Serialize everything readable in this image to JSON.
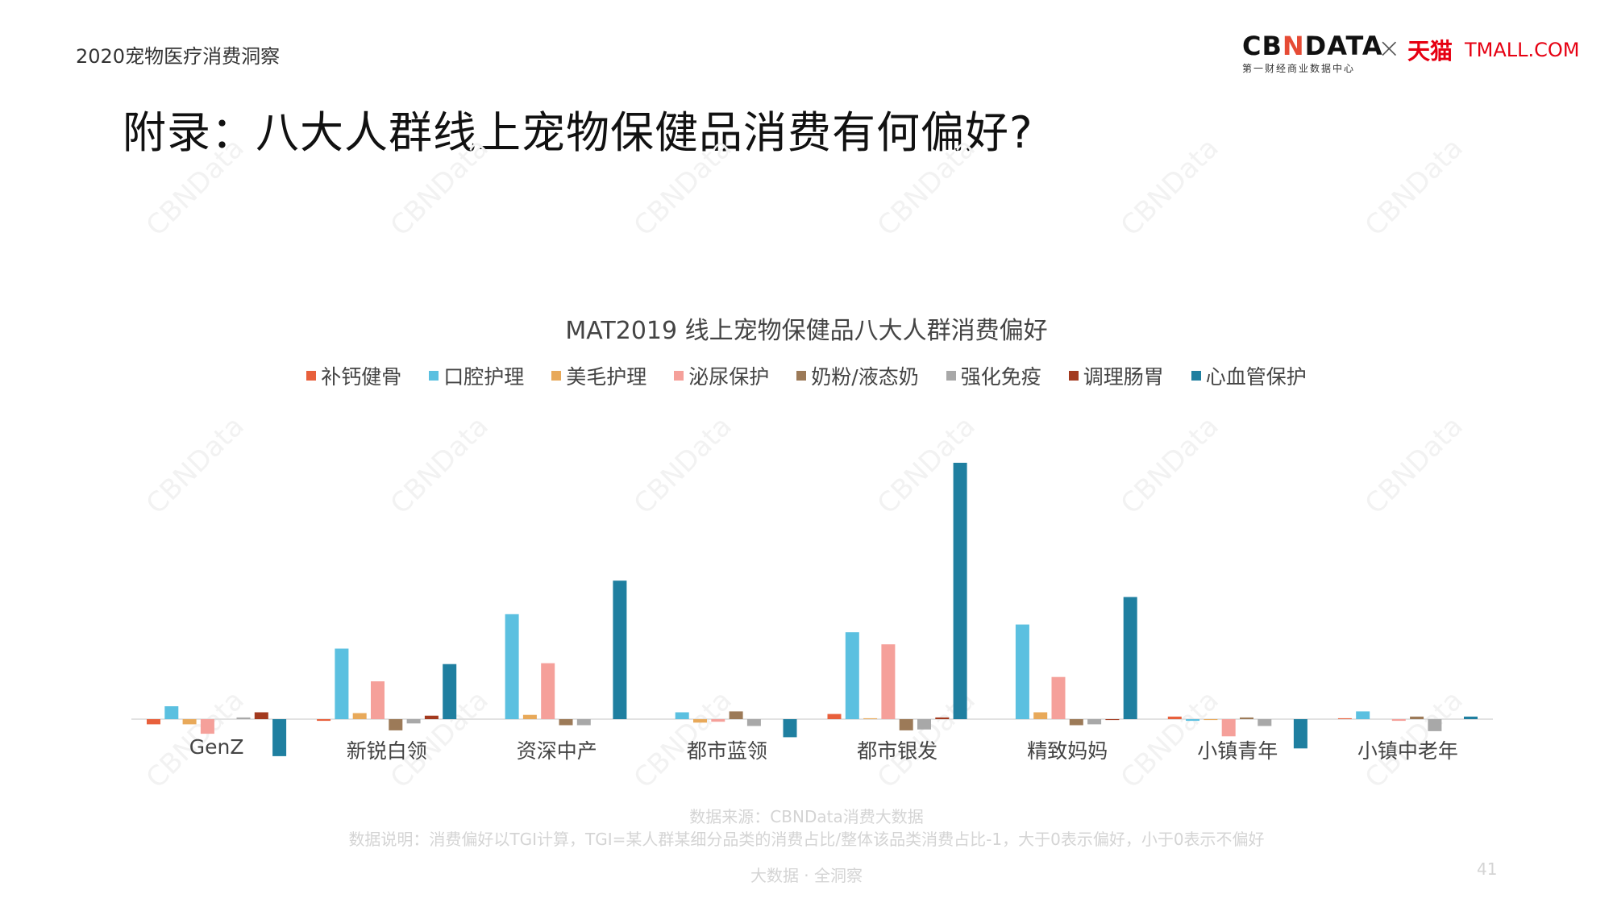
{
  "header": {
    "report_title": "2020宠物医疗消费洞察",
    "page_heading": "附录：八大人群线上宠物保健品消费有何偏好?"
  },
  "logo": {
    "cbndata_prefix": "CB",
    "cbndata_accent": "N",
    "cbndata_suffix": "DATA",
    "cbndata_sub": "第一财经商业数据中心",
    "separator": "×",
    "tmall_cn": "天猫",
    "tmall_en": "TMALL.COM"
  },
  "colors": {
    "补钙健骨": "#e8603c",
    "口腔护理": "#5bc0e0",
    "美毛护理": "#e8a95a",
    "泌尿保护": "#f5a09a",
    "奶粉/液态奶": "#9c7a58",
    "强化免疫": "#a8a8a8",
    "调理肠胃": "#a33a1f",
    "心血管保护": "#1f7fa0"
  },
  "chart_data": {
    "type": "bar",
    "title": "MAT2019 线上宠物保健品八大人群消费偏好",
    "categories": [
      "GenZ",
      "新锐白领",
      "资深中产",
      "都市蓝领",
      "都市银发",
      "精致妈妈",
      "小镇青年",
      "小镇中老年"
    ],
    "series": [
      {
        "name": "补钙健骨",
        "values": [
          -0.06,
          -0.02,
          0.0,
          0.0,
          0.06,
          0.0,
          0.03,
          0.01
        ]
      },
      {
        "name": "口腔护理",
        "values": [
          0.15,
          0.82,
          1.22,
          0.08,
          1.01,
          1.1,
          -0.02,
          0.09
        ]
      },
      {
        "name": "美毛护理",
        "values": [
          -0.06,
          0.07,
          0.05,
          -0.04,
          0.01,
          0.08,
          -0.01,
          0.0
        ]
      },
      {
        "name": "泌尿保护",
        "values": [
          -0.17,
          0.44,
          0.65,
          -0.03,
          0.87,
          0.49,
          -0.2,
          -0.02
        ]
      },
      {
        "name": "奶粉/液态奶",
        "values": [
          0.0,
          -0.13,
          -0.07,
          0.09,
          -0.13,
          -0.07,
          0.02,
          0.03
        ]
      },
      {
        "name": "强化免疫",
        "values": [
          0.02,
          -0.05,
          -0.07,
          -0.08,
          -0.12,
          -0.06,
          -0.08,
          -0.14
        ]
      },
      {
        "name": "调理肠胃",
        "values": [
          0.08,
          0.04,
          0.0,
          0.0,
          0.02,
          -0.01,
          0.0,
          0.0
        ]
      },
      {
        "name": "心血管保护",
        "values": [
          -0.43,
          0.64,
          1.61,
          -0.21,
          2.98,
          1.42,
          -0.34,
          0.03
        ]
      }
    ],
    "xlabel": "",
    "ylabel": "",
    "grid": false,
    "legend_position": "top-center"
  },
  "footer": {
    "source": "数据来源：CBNData消费大数据",
    "note": "数据说明：消费偏好以TGI计算，TGI=某人群某细分品类的消费占比/整体该品类消费占比-1，大于0表示偏好，小于0表示不偏好",
    "tag": "大数据 · 全洞察",
    "page_number": "41"
  },
  "watermark_text": "CBNData"
}
